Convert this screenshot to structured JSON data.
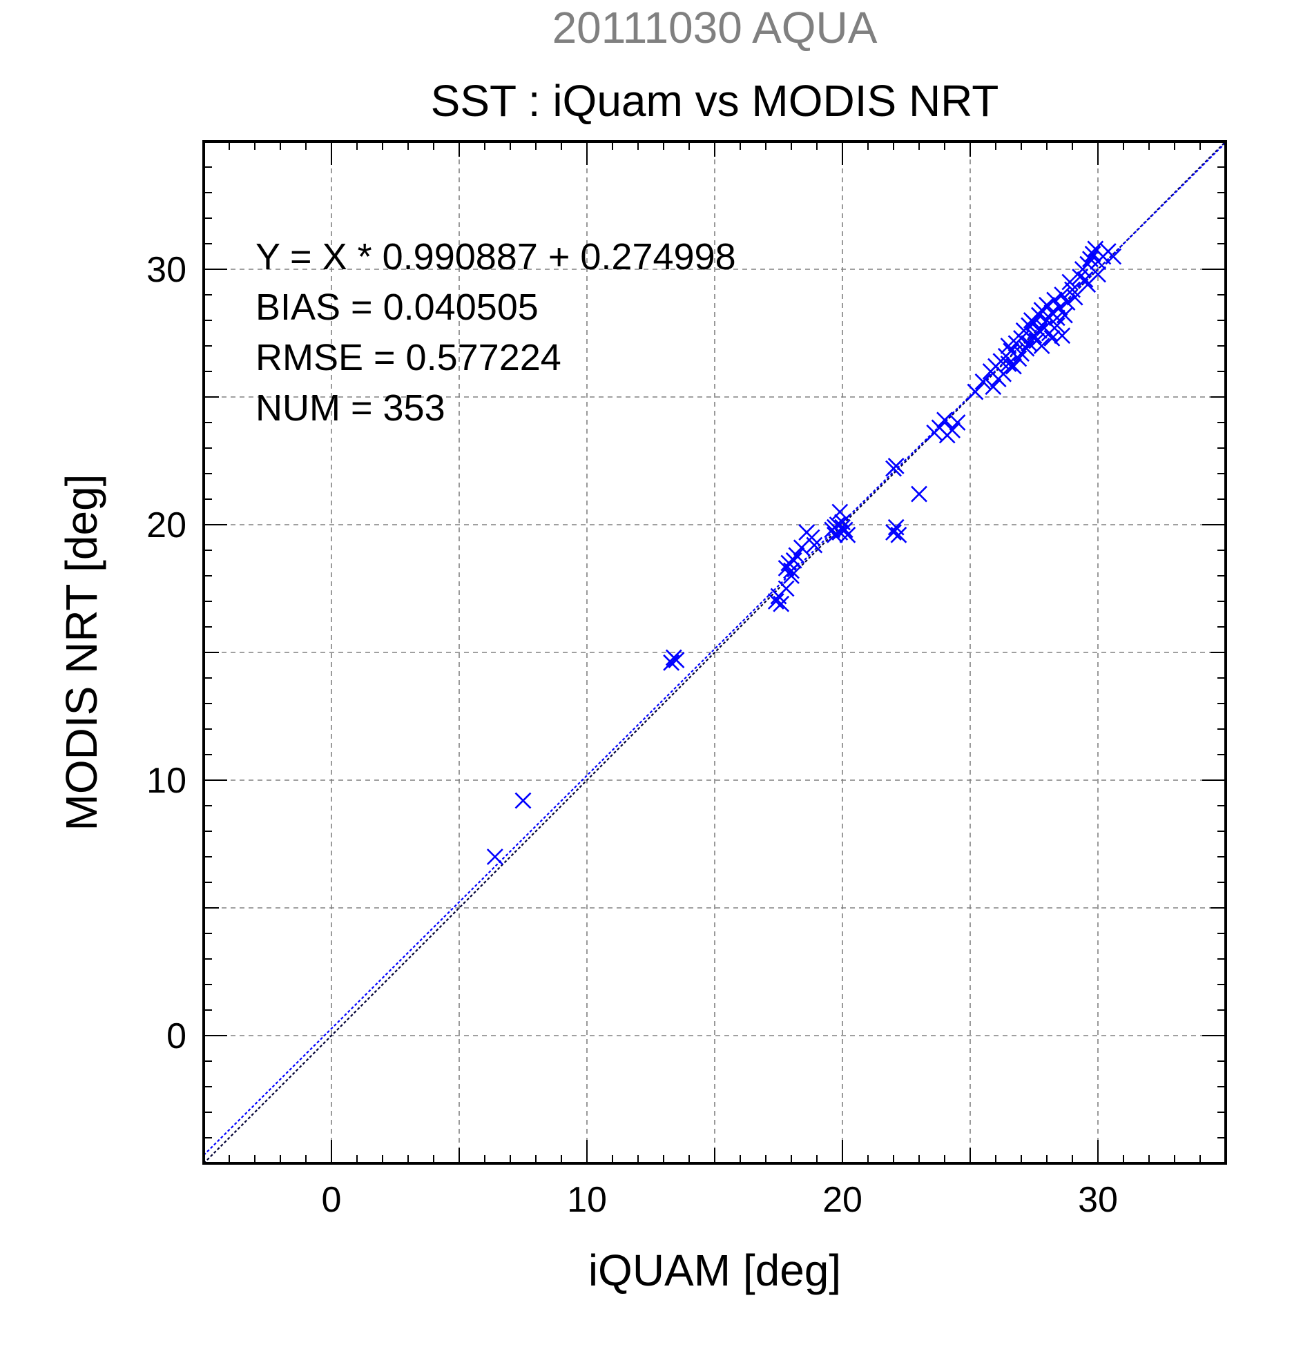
{
  "chart_data": {
    "type": "scatter",
    "title": "SST : iQuam vs MODIS NRT",
    "subtitle": "20111030 AQUA",
    "xlabel": "iQUAM [deg]",
    "ylabel": "MODIS NRT [deg]",
    "xlim": [
      -5,
      35
    ],
    "ylim": [
      -5,
      35
    ],
    "xticks": [
      0,
      10,
      20,
      30
    ],
    "yticks": [
      0,
      10,
      20,
      30
    ],
    "xtick_labels": [
      "0",
      "10",
      "20",
      "30"
    ],
    "ytick_labels": [
      "0",
      "10",
      "20",
      "30"
    ],
    "grid": true,
    "annotations": [
      "Y = X * 0.990887 + 0.274998",
      "BIAS = 0.040505",
      "RMSE = 0.577224",
      "NUM = 353"
    ],
    "fit": {
      "slope": 0.990887,
      "intercept": 0.274998
    },
    "marker": "x",
    "colors": {
      "points": "#0000ff",
      "fit_line": "#0000ff",
      "identity_line": "#000033",
      "subtitle": "#808080",
      "grid": "#808080"
    },
    "points": [
      [
        6.4,
        7.0
      ],
      [
        7.5,
        9.2
      ],
      [
        13.3,
        14.6
      ],
      [
        13.4,
        14.8
      ],
      [
        13.5,
        14.7
      ],
      [
        17.4,
        17.0
      ],
      [
        17.5,
        17.2
      ],
      [
        17.6,
        16.9
      ],
      [
        17.8,
        17.5
      ],
      [
        17.9,
        18.5
      ],
      [
        18.0,
        18.0
      ],
      [
        18.1,
        18.6
      ],
      [
        18.2,
        18.8
      ],
      [
        18.0,
        18.2
      ],
      [
        17.8,
        18.3
      ],
      [
        18.4,
        19.1
      ],
      [
        18.6,
        19.7
      ],
      [
        18.8,
        19.5
      ],
      [
        18.9,
        19.2
      ],
      [
        19.6,
        19.8
      ],
      [
        19.7,
        19.9
      ],
      [
        19.8,
        20.0
      ],
      [
        19.9,
        19.7
      ],
      [
        20.0,
        20.1
      ],
      [
        20.1,
        19.8
      ],
      [
        20.2,
        19.6
      ],
      [
        19.9,
        20.5
      ],
      [
        20.0,
        19.9
      ],
      [
        19.7,
        19.6
      ],
      [
        22.0,
        22.2
      ],
      [
        22.1,
        22.3
      ],
      [
        22.0,
        19.7
      ],
      [
        22.1,
        19.9
      ],
      [
        22.2,
        19.6
      ],
      [
        23.0,
        21.2
      ],
      [
        23.6,
        23.6
      ],
      [
        23.8,
        23.8
      ],
      [
        24.0,
        24.1
      ],
      [
        24.1,
        23.5
      ],
      [
        24.3,
        23.7
      ],
      [
        24.5,
        24.0
      ],
      [
        25.2,
        25.2
      ],
      [
        25.5,
        25.6
      ],
      [
        25.8,
        26.0
      ],
      [
        25.9,
        25.4
      ],
      [
        26.0,
        26.2
      ],
      [
        26.1,
        25.7
      ],
      [
        26.2,
        26.4
      ],
      [
        26.3,
        25.9
      ],
      [
        26.4,
        26.6
      ],
      [
        26.5,
        26.3
      ],
      [
        26.5,
        27.0
      ],
      [
        26.6,
        26.8
      ],
      [
        26.7,
        26.2
      ],
      [
        26.8,
        27.1
      ],
      [
        26.9,
        26.5
      ],
      [
        27.0,
        27.3
      ],
      [
        27.0,
        26.7
      ],
      [
        27.1,
        27.6
      ],
      [
        27.2,
        26.9
      ],
      [
        27.3,
        27.8
      ],
      [
        27.3,
        27.1
      ],
      [
        27.4,
        28.0
      ],
      [
        27.5,
        27.4
      ],
      [
        27.5,
        27.9
      ],
      [
        27.6,
        27.2
      ],
      [
        27.7,
        28.2
      ],
      [
        27.7,
        27.6
      ],
      [
        27.8,
        28.4
      ],
      [
        27.8,
        27.0
      ],
      [
        27.9,
        27.7
      ],
      [
        28.0,
        28.6
      ],
      [
        28.0,
        28.0
      ],
      [
        28.1,
        27.5
      ],
      [
        28.2,
        28.3
      ],
      [
        28.2,
        27.3
      ],
      [
        28.3,
        28.8
      ],
      [
        28.4,
        28.1
      ],
      [
        28.4,
        27.8
      ],
      [
        28.5,
        28.5
      ],
      [
        28.6,
        29.0
      ],
      [
        28.6,
        27.4
      ],
      [
        28.7,
        28.2
      ],
      [
        28.8,
        28.7
      ],
      [
        28.9,
        29.5
      ],
      [
        29.0,
        29.2
      ],
      [
        29.1,
        28.9
      ],
      [
        29.3,
        29.7
      ],
      [
        29.4,
        30.0
      ],
      [
        29.5,
        29.6
      ],
      [
        29.6,
        30.2
      ],
      [
        29.7,
        30.4
      ],
      [
        29.8,
        30.6
      ],
      [
        29.9,
        30.8
      ],
      [
        30.0,
        30.3
      ],
      [
        30.2,
        30.5
      ],
      [
        30.4,
        30.7
      ],
      [
        30.6,
        30.5
      ],
      [
        29.6,
        29.4
      ],
      [
        30.0,
        29.8
      ]
    ]
  }
}
